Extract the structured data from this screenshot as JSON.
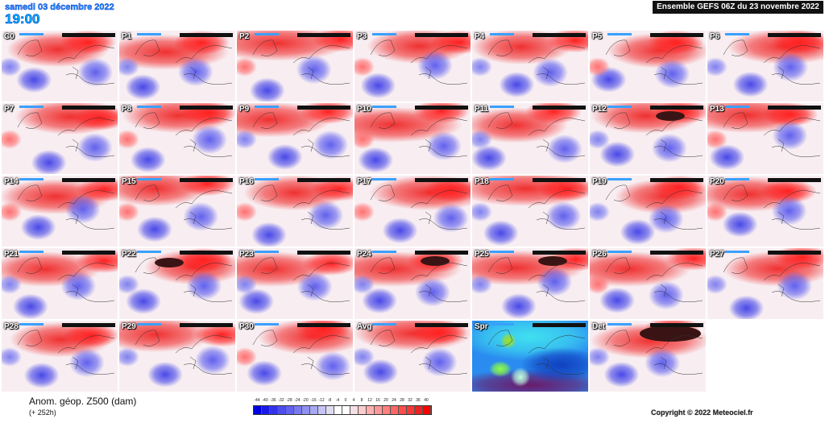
{
  "header": {
    "date": "samedi 03 décembre 2022",
    "time": "19:00",
    "run": "Ensemble GEFS 06Z du 23 novembre 2022"
  },
  "panels": [
    "C0",
    "P1",
    "P2",
    "P3",
    "P4",
    "P5",
    "P6",
    "P7",
    "P8",
    "P9",
    "P10",
    "P11",
    "P12",
    "P13",
    "P14",
    "P15",
    "P16",
    "P17",
    "P18",
    "P19",
    "P20",
    "P21",
    "P22",
    "P23",
    "P24",
    "P25",
    "P26",
    "P27",
    "P28",
    "P29",
    "P30",
    "Avg",
    "Spr",
    "Det"
  ],
  "legend": {
    "title": "Anom. géop. Z500 (dam)",
    "subtitle": "(+ 252h)",
    "ticks": [
      "-44",
      "-40",
      "-36",
      "-32",
      "-28",
      "-24",
      "-20",
      "-16",
      "-12",
      "-8",
      "-4",
      "0",
      "4",
      "8",
      "12",
      "16",
      "20",
      "24",
      "28",
      "32",
      "36",
      "40"
    ],
    "colors": [
      "#0000e0",
      "#1a1ae8",
      "#3333ea",
      "#4d4dee",
      "#6262ee",
      "#7a7af0",
      "#9090f2",
      "#a8a8f4",
      "#c4c4f6",
      "#e0dcf0",
      "#ffffff",
      "#ffffff",
      "#f4e0e6",
      "#ffcccc",
      "#ffb0b0",
      "#ff9898",
      "#ff8080",
      "#ff6666",
      "#ff4c4c",
      "#f53838",
      "#ee2020",
      "#ff0000"
    ]
  },
  "copyright": "Copyright © 2022 Meteociel.fr"
}
